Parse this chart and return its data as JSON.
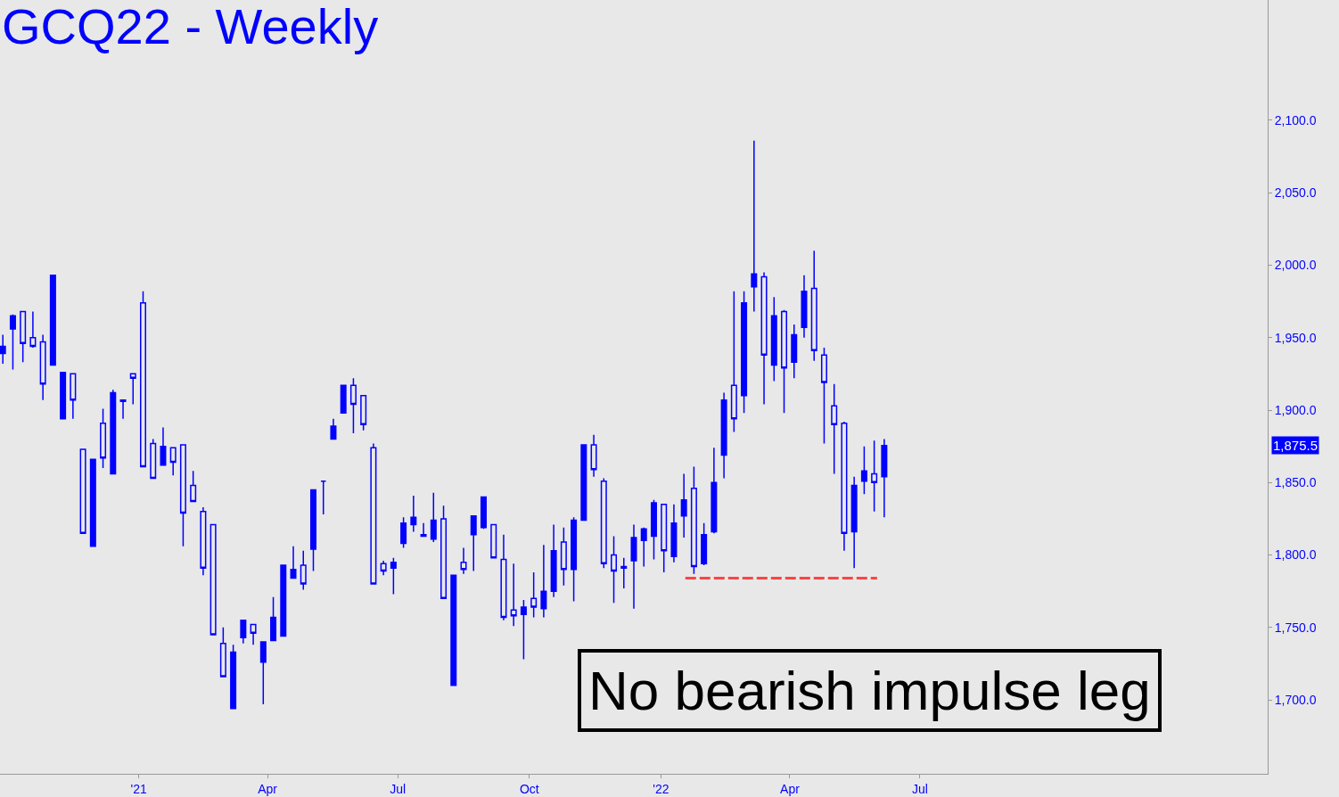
{
  "chart_data": {
    "type": "candlestick",
    "title": "GCQ22 - Weekly",
    "color": "#0000ff",
    "x": [
      "2020-09-28",
      "2020-10-05",
      "2020-10-12",
      "2020-10-19",
      "2020-10-26",
      "2020-11-02",
      "2020-11-09",
      "2020-11-16",
      "2020-11-23",
      "2020-11-30",
      "2020-12-07",
      "2020-12-14",
      "2020-12-21",
      "2020-12-28",
      "2021-01-04",
      "2021-01-11",
      "2021-01-18",
      "2021-01-25",
      "2021-02-01",
      "2021-02-08",
      "2021-02-15",
      "2021-02-22",
      "2021-03-01",
      "2021-03-08",
      "2021-03-15",
      "2021-03-22",
      "2021-03-29",
      "2021-04-05",
      "2021-04-12",
      "2021-04-19",
      "2021-04-26",
      "2021-05-03",
      "2021-05-10",
      "2021-05-17",
      "2021-05-24",
      "2021-05-31",
      "2021-06-07",
      "2021-06-14",
      "2021-06-21",
      "2021-06-28",
      "2021-07-05",
      "2021-07-12",
      "2021-07-19",
      "2021-07-26",
      "2021-08-02",
      "2021-08-09",
      "2021-08-16",
      "2021-08-23",
      "2021-08-30",
      "2021-09-06",
      "2021-09-13",
      "2021-09-20",
      "2021-09-27",
      "2021-10-04",
      "2021-10-11",
      "2021-10-18",
      "2021-10-25",
      "2021-11-01",
      "2021-11-08",
      "2021-11-15",
      "2021-11-22",
      "2021-11-29",
      "2021-12-06",
      "2021-12-13",
      "2021-12-20",
      "2021-12-27",
      "2022-01-03",
      "2022-01-10",
      "2022-01-17",
      "2022-01-24",
      "2022-01-31",
      "2022-02-07",
      "2022-02-14",
      "2022-02-21",
      "2022-02-28",
      "2022-03-07",
      "2022-03-14",
      "2022-03-21",
      "2022-03-28",
      "2022-04-04",
      "2022-04-11",
      "2022-04-18",
      "2022-04-25",
      "2022-05-02",
      "2022-05-09",
      "2022-05-16",
      "2022-05-23",
      "2022-05-30",
      "2022-06-06"
    ],
    "ohlc": [
      [
        1939,
        1952,
        1932,
        1944
      ],
      [
        1956,
        1966,
        1928,
        1965
      ],
      [
        1968,
        1968,
        1933,
        1946
      ],
      [
        1950,
        1968,
        1943,
        1944
      ],
      [
        1947,
        1952,
        1907,
        1918
      ],
      [
        1931,
        1993,
        1931,
        1993
      ],
      [
        1894,
        1926,
        1894,
        1926
      ],
      [
        1925,
        1925,
        1894,
        1907
      ],
      [
        1873,
        1873,
        1815,
        1815
      ],
      [
        1806,
        1866,
        1806,
        1866
      ],
      [
        1891,
        1901,
        1860,
        1867
      ],
      [
        1856,
        1914,
        1856,
        1912
      ],
      [
        1906,
        1907,
        1894,
        1907
      ],
      [
        1925,
        1925,
        1904,
        1922
      ],
      [
        1974,
        1982,
        1861,
        1861
      ],
      [
        1877,
        1880,
        1853,
        1853
      ],
      [
        1862,
        1888,
        1862,
        1875
      ],
      [
        1874,
        1874,
        1855,
        1864
      ],
      [
        1876,
        1876,
        1806,
        1829
      ],
      [
        1848,
        1858,
        1837,
        1837
      ],
      [
        1830,
        1833,
        1786,
        1791
      ],
      [
        1821,
        1821,
        1745,
        1745
      ],
      [
        1739,
        1750,
        1716,
        1716
      ],
      [
        1694,
        1738,
        1694,
        1733
      ],
      [
        1743,
        1755,
        1739,
        1755
      ],
      [
        1752,
        1752,
        1738,
        1746
      ],
      [
        1726,
        1740,
        1697,
        1740
      ],
      [
        1741,
        1771,
        1741,
        1757
      ],
      [
        1744,
        1793,
        1744,
        1793
      ],
      [
        1784,
        1806,
        1784,
        1790
      ],
      [
        1793,
        1803,
        1776,
        1780
      ],
      [
        1804,
        1845,
        1789,
        1845
      ],
      [
        1851,
        1851,
        1828,
        1851
      ],
      [
        1880,
        1894,
        1880,
        1889
      ],
      [
        1898,
        1917,
        1898,
        1917
      ],
      [
        1917,
        1922,
        1884,
        1904
      ],
      [
        1910,
        1910,
        1886,
        1890
      ],
      [
        1874,
        1877,
        1780,
        1780
      ],
      [
        1794,
        1796,
        1786,
        1789
      ],
      [
        1791,
        1798,
        1773,
        1795
      ],
      [
        1808,
        1826,
        1805,
        1822
      ],
      [
        1821,
        1841,
        1816,
        1826
      ],
      [
        1814,
        1822,
        1813,
        1813
      ],
      [
        1811,
        1843,
        1809,
        1824
      ],
      [
        1825,
        1834,
        1770,
        1770
      ],
      [
        1710,
        1786,
        1710,
        1786
      ],
      [
        1795,
        1805,
        1787,
        1790
      ],
      [
        1814,
        1827,
        1789,
        1827
      ],
      [
        1819,
        1840,
        1818,
        1840
      ],
      [
        1821,
        1821,
        1798,
        1798
      ],
      [
        1797,
        1814,
        1755,
        1757
      ],
      [
        1762,
        1794,
        1751,
        1758
      ],
      [
        1759,
        1769,
        1728,
        1764
      ],
      [
        1770,
        1788,
        1757,
        1764
      ],
      [
        1763,
        1807,
        1757,
        1775
      ],
      [
        1775,
        1821,
        1771,
        1803
      ],
      [
        1809,
        1819,
        1779,
        1790
      ],
      [
        1790,
        1826,
        1768,
        1824
      ],
      [
        1824,
        1876,
        1824,
        1876
      ],
      [
        1876,
        1883,
        1854,
        1859
      ],
      [
        1851,
        1853,
        1791,
        1794
      ],
      [
        1800,
        1813,
        1767,
        1789
      ],
      [
        1792,
        1798,
        1777,
        1791
      ],
      [
        1796,
        1821,
        1763,
        1812
      ],
      [
        1810,
        1819,
        1792,
        1818
      ],
      [
        1813,
        1838,
        1797,
        1836
      ],
      [
        1835,
        1835,
        1788,
        1803
      ],
      [
        1799,
        1835,
        1795,
        1822
      ],
      [
        1827,
        1856,
        1812,
        1838
      ],
      [
        1846,
        1861,
        1787,
        1792
      ],
      [
        1794,
        1822,
        1793,
        1814
      ],
      [
        1816,
        1874,
        1815,
        1850
      ],
      [
        1869,
        1912,
        1853,
        1907
      ],
      [
        1917,
        1982,
        1885,
        1894
      ],
      [
        1910,
        1982,
        1898,
        1974
      ],
      [
        1985,
        2086,
        1968,
        1994
      ],
      [
        1992,
        1995,
        1904,
        1938
      ],
      [
        1931,
        1978,
        1920,
        1965
      ],
      [
        1968,
        1969,
        1898,
        1929
      ],
      [
        1933,
        1959,
        1922,
        1952
      ],
      [
        1957,
        1993,
        1950,
        1982
      ],
      [
        1984,
        2010,
        1934,
        1941
      ],
      [
        1938,
        1943,
        1877,
        1919
      ],
      [
        1903,
        1918,
        1856,
        1890
      ],
      [
        1891,
        1892,
        1803,
        1815
      ],
      [
        1816,
        1854,
        1791,
        1848
      ],
      [
        1851,
        1875,
        1842,
        1858
      ],
      [
        1856,
        1879,
        1830,
        1850
      ],
      [
        1854,
        1880,
        1826,
        1875.5
      ]
    ],
    "series": [
      {
        "type": "line",
        "color": "#ff4444",
        "line_style": "dashed",
        "x": [
          "2022-01-18",
          "2022-06-01"
        ],
        "values": [
          1784,
          1784
        ]
      }
    ],
    "xlim": [
      "2020-09-26",
      "2023-03-01"
    ],
    "xticks": [
      {
        "value": "2021-01-01",
        "label": "'21"
      },
      {
        "value": "2021-04-01",
        "label": "Apr"
      },
      {
        "value": "2021-07-01",
        "label": "Jul"
      },
      {
        "value": "2021-10-01",
        "label": "Oct"
      },
      {
        "value": "2022-01-01",
        "label": "'22"
      },
      {
        "value": "2022-04-01",
        "label": "Apr"
      },
      {
        "value": "2022-07-01",
        "label": "Jul"
      }
    ],
    "ylim": [
      1649,
      2183
    ],
    "yticks": [
      {
        "value": 1700,
        "label": "1,700.0"
      },
      {
        "value": 1750,
        "label": "1,750.0"
      },
      {
        "value": 1800,
        "label": "1,800.0"
      },
      {
        "value": 1850,
        "label": "1,850.0"
      },
      {
        "value": 1900,
        "label": "1,900.0"
      },
      {
        "value": 1950,
        "label": "1,950.0"
      },
      {
        "value": 2000,
        "label": "2,000.0"
      },
      {
        "value": 2050,
        "label": "2,050.0"
      },
      {
        "value": 2100,
        "label": "2,100.0"
      }
    ],
    "grid": false,
    "annotations": [
      "1,875.5",
      "No bearish impulse leg"
    ]
  }
}
